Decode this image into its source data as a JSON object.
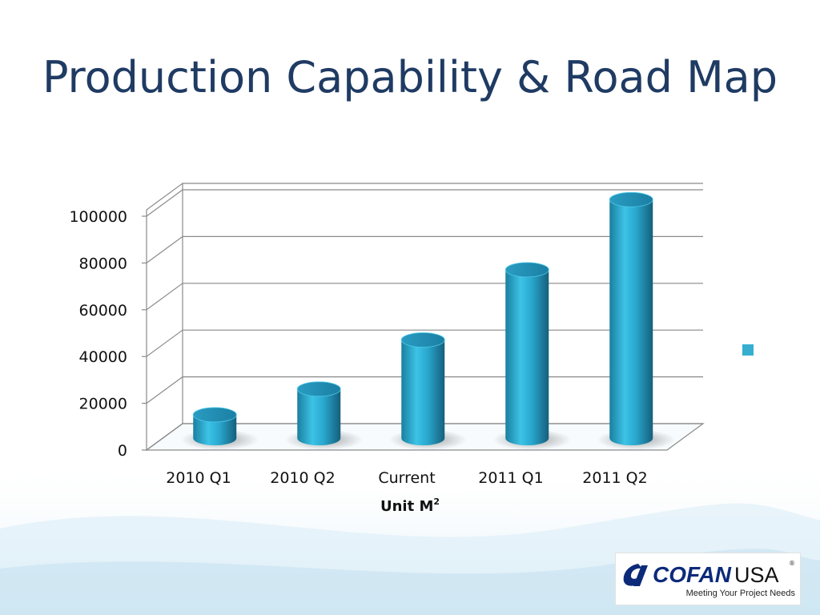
{
  "slide": {
    "title": "Production Capability & Road Map"
  },
  "chart_data": {
    "type": "bar",
    "style": "3d-cylinder",
    "categories": [
      "2010 Q1",
      "2010 Q2",
      "Current",
      "2011 Q1",
      "2011 Q2"
    ],
    "series": [
      {
        "values": [
          10000,
          21000,
          42000,
          72000,
          102000
        ]
      }
    ],
    "yticks": [
      "0",
      "20000",
      "40000",
      "60000",
      "80000",
      "100000"
    ],
    "ylim": [
      0,
      100000
    ],
    "xlabel": "Unit M",
    "xlabel_sup": "2",
    "grid": true,
    "legend": "right",
    "bar_color": "#2fb1d6"
  },
  "logo": {
    "brand": "COFAN",
    "suffix": "USA",
    "tagline": "Meeting Your Project Needs",
    "mark": "reg",
    "mark_text": "®"
  },
  "colors": {
    "title": "#1f3b63",
    "bar": "#2fb1d6",
    "legend": "#35aed0"
  }
}
